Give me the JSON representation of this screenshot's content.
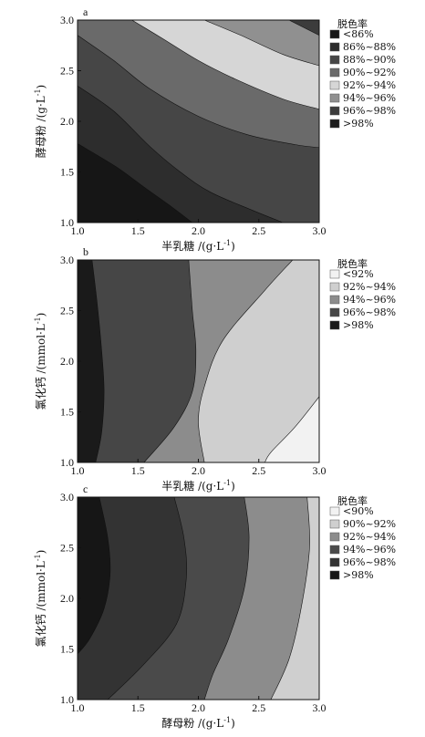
{
  "chart_data": [
    {
      "type": "contour",
      "panel_label": "a",
      "xlabel": "半乳糖 /(g·L",
      "xlabel_sup": "-1",
      "xlabel_end": ")",
      "ylabel": "酵母粉 /(g·L",
      "ylabel_sup": "-1",
      "ylabel_end": ")",
      "xlim": [
        1.0,
        3.0
      ],
      "ylim": [
        1.0,
        3.0
      ],
      "xticks": [
        "1.0",
        "1.5",
        "2.0",
        "2.5",
        "3.0"
      ],
      "yticks": [
        "1.0",
        "1.5",
        "2.0",
        "2.5",
        "3.0"
      ],
      "legend_title": "脱色率",
      "legend": [
        {
          "label": "<86%",
          "color": "#161616"
        },
        {
          "label": "86%~88%",
          "color": "#2d2d2d"
        },
        {
          "label": "88%~90%",
          "color": "#464646"
        },
        {
          "label": "90%~92%",
          "color": "#6a6a6a"
        },
        {
          "label": "92%~94%",
          "color": "#d6d6d6"
        },
        {
          "label": "94%~96%",
          "color": "#909090"
        },
        {
          "label": "96%~98%",
          "color": "#3c3c3c"
        },
        {
          "label": ">98%",
          "color": "#1c1c1c"
        }
      ],
      "bands": [
        {
          "range": "86%~88%",
          "color": "#2d2d2d",
          "boundary": [
            [
              1.0,
              1.78
            ],
            [
              1.32,
              1.55
            ],
            [
              1.55,
              1.35
            ],
            [
              1.75,
              1.18
            ],
            [
              1.95,
              1.0
            ]
          ]
        },
        {
          "range": "88%~90%",
          "color": "#464646",
          "boundary": [
            [
              1.0,
              2.35
            ],
            [
              1.3,
              2.1
            ],
            [
              1.6,
              1.75
            ],
            [
              1.85,
              1.5
            ],
            [
              2.1,
              1.3
            ],
            [
              2.45,
              1.12
            ],
            [
              2.7,
              1.0
            ]
          ]
        },
        {
          "range": "90%~92%",
          "color": "#6a6a6a",
          "boundary": [
            [
              1.0,
              2.85
            ],
            [
              1.3,
              2.6
            ],
            [
              1.6,
              2.32
            ],
            [
              2.0,
              2.05
            ],
            [
              2.4,
              1.87
            ],
            [
              2.8,
              1.77
            ],
            [
              3.0,
              1.74
            ]
          ]
        },
        {
          "range": "92%~94%",
          "color": "#d6d6d6",
          "boundary": [
            [
              1.45,
              3.0
            ],
            [
              1.7,
              2.82
            ],
            [
              2.0,
              2.6
            ],
            [
              2.3,
              2.42
            ],
            [
              2.7,
              2.22
            ],
            [
              3.0,
              2.12
            ]
          ]
        },
        {
          "range": "94%~96%",
          "color": "#909090",
          "boundary": [
            [
              2.05,
              3.0
            ],
            [
              2.35,
              2.85
            ],
            [
              2.7,
              2.66
            ],
            [
              3.0,
              2.55
            ]
          ]
        },
        {
          "range": "96%~98%",
          "color": "#3c3c3c",
          "boundary": [
            [
              2.75,
              3.0
            ],
            [
              3.0,
              2.85
            ]
          ]
        }
      ],
      "base_color": "#161616"
    },
    {
      "type": "contour",
      "panel_label": "b",
      "xlabel": "半乳糖 /(g·L",
      "xlabel_sup": "-1",
      "xlabel_end": ")",
      "ylabel": "氯化钙 /(mmol·L",
      "ylabel_sup": "-1",
      "ylabel_end": ")",
      "xlim": [
        1.0,
        3.0
      ],
      "ylim": [
        1.0,
        3.0
      ],
      "xticks": [
        "1.0",
        "1.5",
        "2.0",
        "2.5",
        "3.0"
      ],
      "yticks": [
        "1.0",
        "1.5",
        "2.0",
        "2.5",
        "3.0"
      ],
      "legend_title": "脱色率",
      "legend": [
        {
          "label": "<92%",
          "color": "#f2f2f2"
        },
        {
          "label": "92%~94%",
          "color": "#cfcfcf"
        },
        {
          "label": "94%~96%",
          "color": "#8c8c8c"
        },
        {
          "label": "96%~98%",
          "color": "#464646"
        },
        {
          "label": ">98%",
          "color": "#1a1a1a"
        }
      ],
      "bands": [
        {
          "range": "96%~98%",
          "color": "#464646",
          "boundary": [
            [
              1.12,
              3.0
            ],
            [
              1.16,
              2.6
            ],
            [
              1.2,
              2.1
            ],
            [
              1.22,
              1.7
            ],
            [
              1.2,
              1.3
            ],
            [
              1.15,
              1.0
            ]
          ]
        },
        {
          "range": "94%~96%",
          "color": "#8c8c8c",
          "boundary": [
            [
              1.92,
              3.0
            ],
            [
              1.95,
              2.5
            ],
            [
              1.98,
              2.1
            ],
            [
              1.95,
              1.7
            ],
            [
              1.8,
              1.35
            ],
            [
              1.55,
              1.0
            ]
          ]
        },
        {
          "range": "92%~94%",
          "color": "#cfcfcf",
          "boundary": [
            [
              2.78,
              3.0
            ],
            [
              2.55,
              2.7
            ],
            [
              2.2,
              2.2
            ],
            [
              2.05,
              1.75
            ],
            [
              2.0,
              1.4
            ],
            [
              2.05,
              1.0
            ]
          ]
        },
        {
          "range": "<92%",
          "color": "#f2f2f2",
          "boundary": [
            [
              3.0,
              1.65
            ],
            [
              2.8,
              1.35
            ],
            [
              2.6,
              1.1
            ],
            [
              2.55,
              1.0
            ]
          ]
        }
      ],
      "base_color": "#1a1a1a"
    },
    {
      "type": "contour",
      "panel_label": "c",
      "xlabel": "酵母粉 /(g·L",
      "xlabel_sup": "-1",
      "xlabel_end": ")",
      "ylabel": "氯化钙 /(mmol·L",
      "ylabel_sup": "-1",
      "ylabel_end": ")",
      "xlim": [
        1.0,
        3.0
      ],
      "ylim": [
        1.0,
        3.0
      ],
      "xticks": [
        "1.0",
        "1.5",
        "2.0",
        "2.5",
        "3.0"
      ],
      "yticks": [
        "1.0",
        "1.5",
        "2.0",
        "2.5",
        "3.0"
      ],
      "legend_title": "脱色率",
      "legend": [
        {
          "label": "<90%",
          "color": "#f2f2f2"
        },
        {
          "label": "90%~92%",
          "color": "#cfcfcf"
        },
        {
          "label": "92%~94%",
          "color": "#8c8c8c"
        },
        {
          "label": "94%~96%",
          "color": "#4a4a4a"
        },
        {
          "label": "96%~98%",
          "color": "#333333"
        },
        {
          "label": ">98%",
          "color": "#161616"
        }
      ],
      "bands": [
        {
          "range": "96%~98%",
          "color": "#333333",
          "boundary": [
            [
              1.18,
              3.0
            ],
            [
              1.25,
              2.6
            ],
            [
              1.27,
              2.25
            ],
            [
              1.22,
              1.9
            ],
            [
              1.1,
              1.6
            ],
            [
              1.0,
              1.45
            ]
          ]
        },
        {
          "range": "94%~96%",
          "color": "#4a4a4a",
          "boundary": [
            [
              1.8,
              3.0
            ],
            [
              1.88,
              2.6
            ],
            [
              1.9,
              2.2
            ],
            [
              1.82,
              1.75
            ],
            [
              1.55,
              1.35
            ],
            [
              1.25,
              1.0
            ]
          ]
        },
        {
          "range": "92%~94%",
          "color": "#8c8c8c",
          "boundary": [
            [
              2.38,
              3.0
            ],
            [
              2.42,
              2.6
            ],
            [
              2.38,
              2.1
            ],
            [
              2.25,
              1.6
            ],
            [
              2.12,
              1.25
            ],
            [
              2.05,
              1.0
            ]
          ]
        },
        {
          "range": "90%~92%",
          "color": "#cfcfcf",
          "boundary": [
            [
              2.9,
              3.0
            ],
            [
              2.92,
              2.5
            ],
            [
              2.85,
              1.9
            ],
            [
              2.75,
              1.4
            ],
            [
              2.6,
              1.0
            ]
          ]
        }
      ],
      "base_color": "#161616"
    }
  ]
}
